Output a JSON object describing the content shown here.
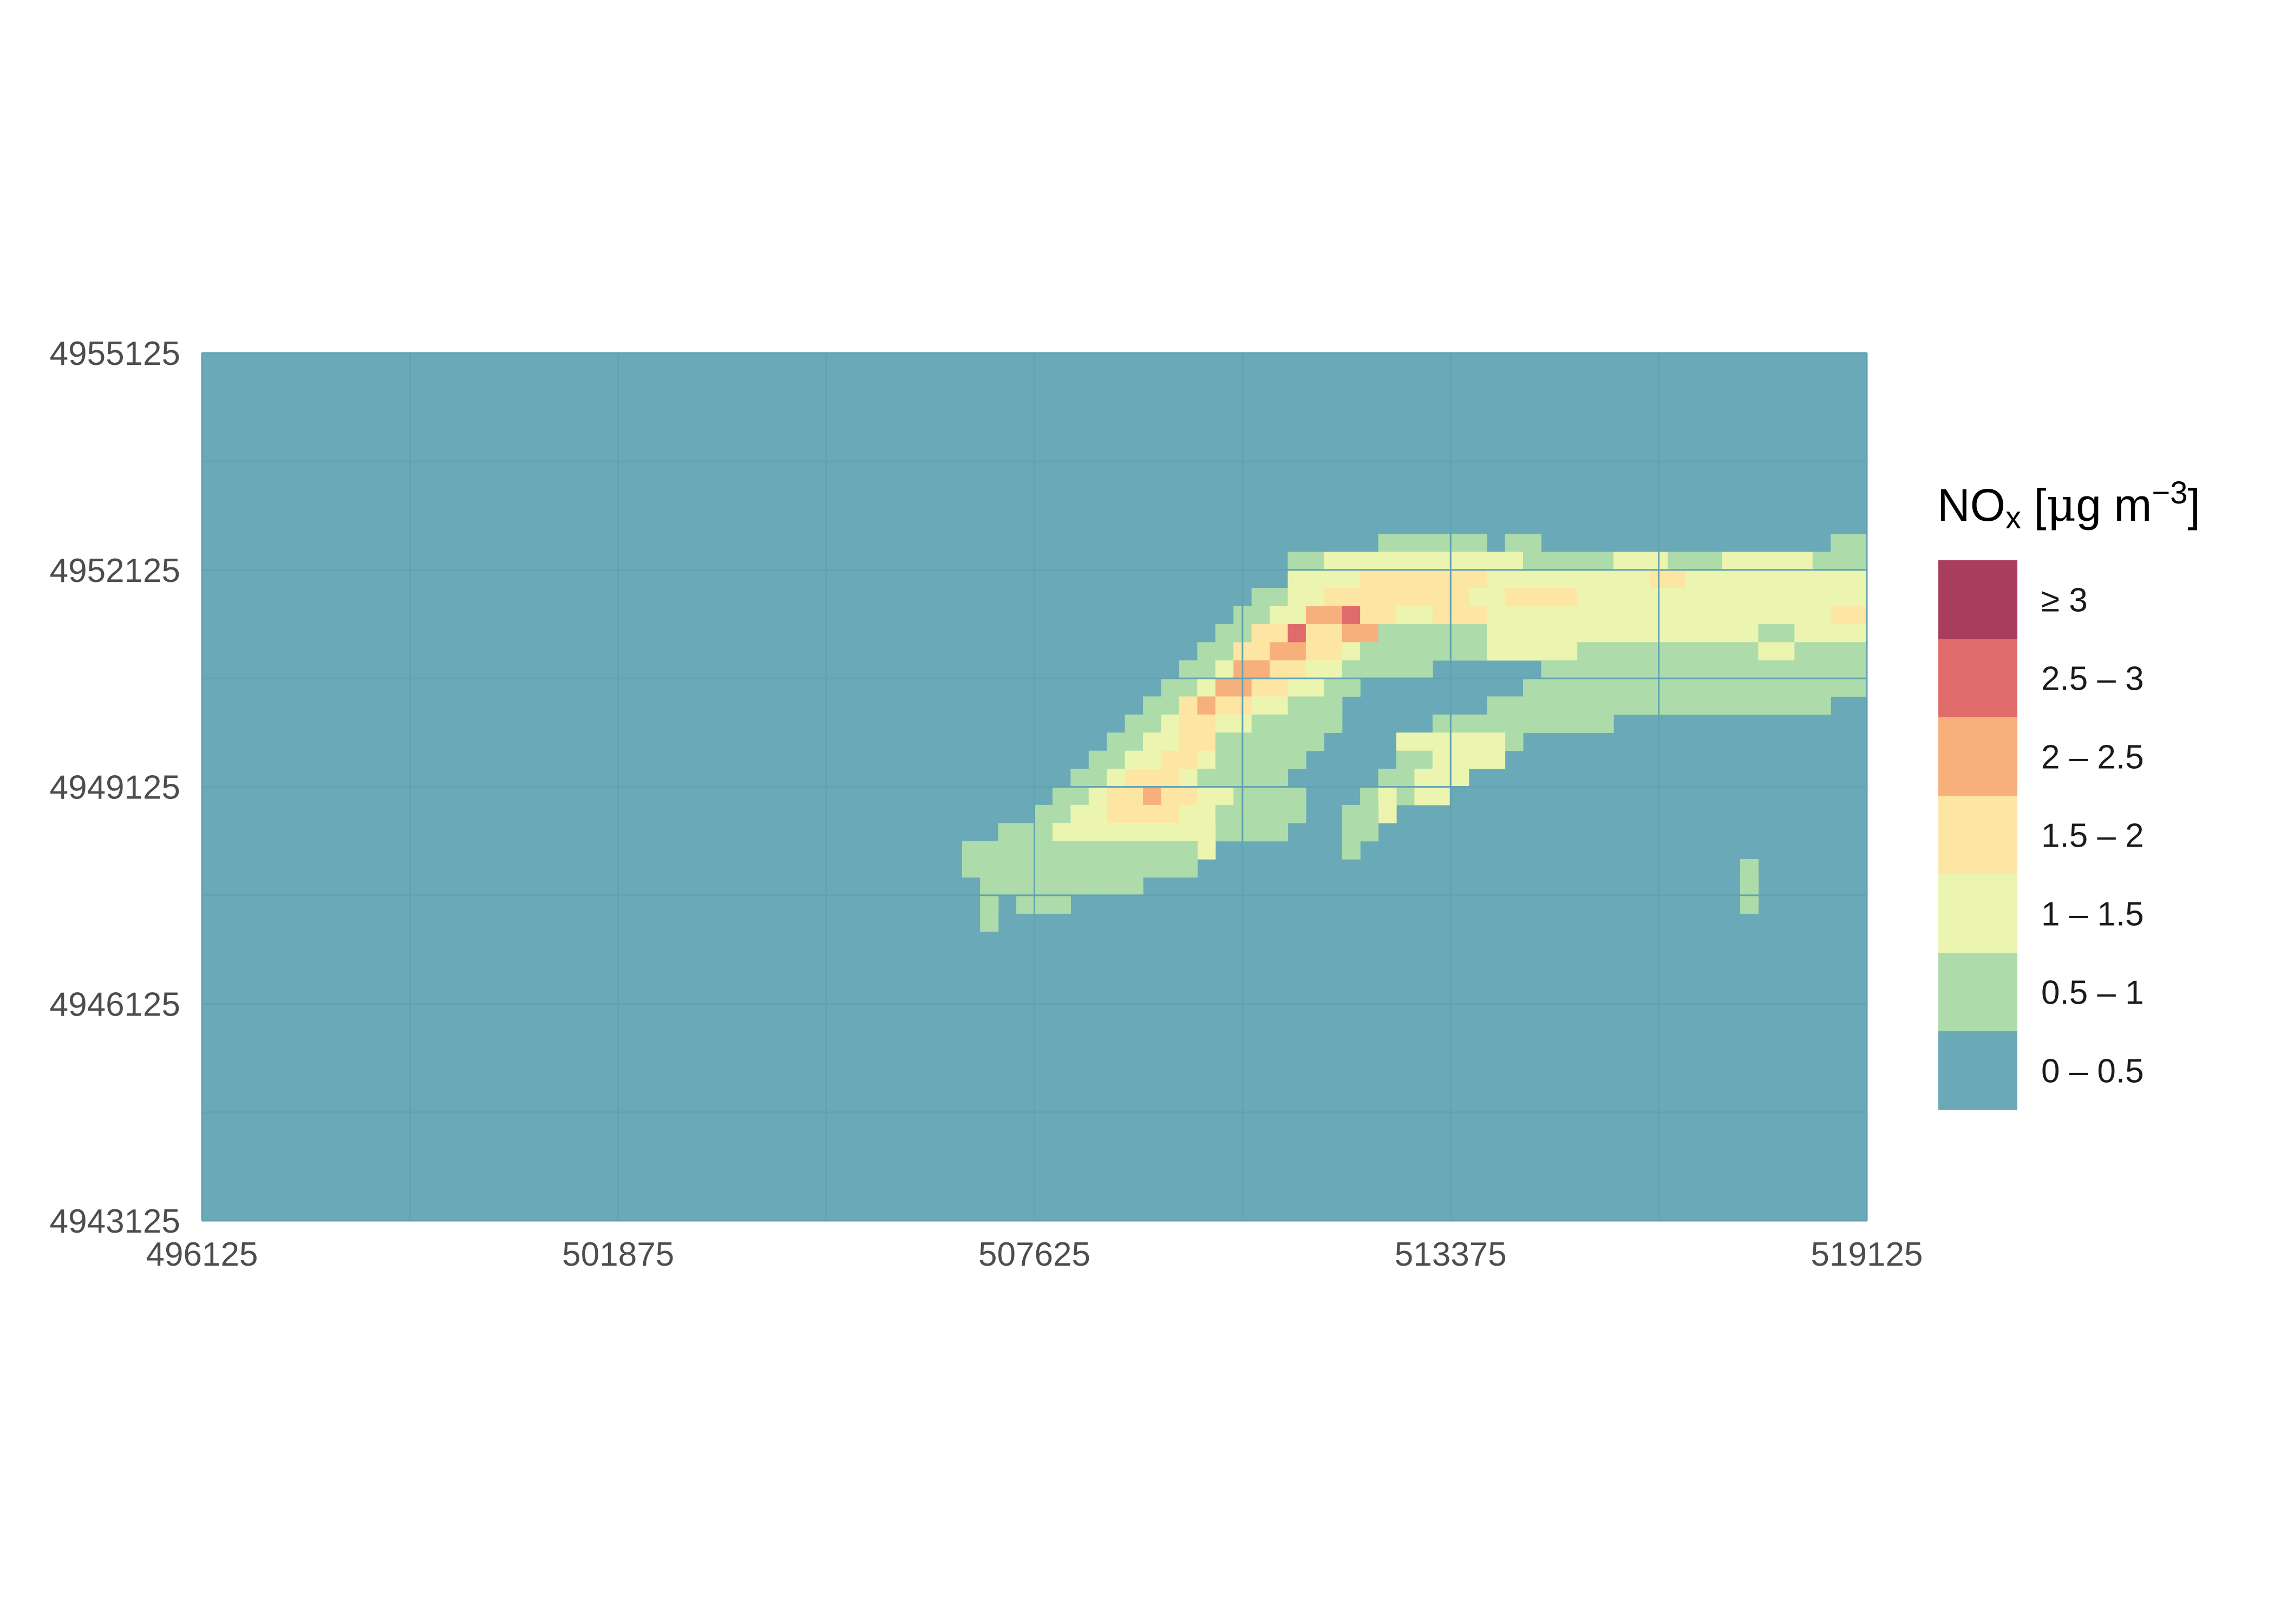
{
  "chart_data": {
    "type": "heatmap",
    "title": "",
    "xlabel": "",
    "ylabel": "",
    "xlim": [
      496125,
      519125
    ],
    "ylim": [
      4943125,
      4955125
    ],
    "x_ticks": [
      "496125",
      "501875",
      "507625",
      "513375",
      "519125"
    ],
    "y_ticks": [
      "4955125",
      "4952125",
      "4949125",
      "4946125",
      "4943125"
    ],
    "cell_size": 500,
    "legend": {
      "title_main": "NO",
      "title_sub": "x",
      "title_unit_open": " [",
      "title_mu": "μ",
      "title_unit": "g m",
      "title_exp": "−3",
      "title_close": "]",
      "position": "right",
      "classes": [
        {
          "label": "≥ 3",
          "color": "#a83d5f"
        },
        {
          "label": "2.5 – 3",
          "color": "#e06b6b"
        },
        {
          "label": "2 – 2.5",
          "color": "#f7b07b"
        },
        {
          "label": "1.5 – 2",
          "color": "#fde6a3"
        },
        {
          "label": "1 – 1.5",
          "color": "#ebf5b0"
        },
        {
          "label": "0.5 – 1",
          "color": "#addcaa"
        },
        {
          "label": "0 – 0.5",
          "color": "#6aa9b8"
        }
      ]
    },
    "background_class": "0 – 0.5",
    "plume_rows_note_omitted": true,
    "plume_rows": [
      {
        "y": 4952375,
        "cells": [
          [
            512375,
            513875,
            "0.5 – 1"
          ],
          [
            514125,
            514625,
            "0.5 – 1"
          ],
          [
            518625,
            519125,
            "0.5 – 1"
          ]
        ]
      },
      {
        "y": 4952125,
        "cells": [
          [
            511125,
            511625,
            "0.5 – 1"
          ],
          [
            511625,
            512125,
            "1 – 1.5"
          ],
          [
            512125,
            513375,
            "1 – 1.5"
          ],
          [
            513375,
            514375,
            "1 – 1.5"
          ],
          [
            514375,
            514625,
            "0.5 – 1"
          ],
          [
            514625,
            515625,
            "0.5 – 1"
          ],
          [
            515625,
            516375,
            "1 – 1.5"
          ],
          [
            516375,
            517125,
            "0.5 – 1"
          ],
          [
            517125,
            518375,
            "1 – 1.5"
          ],
          [
            518375,
            519125,
            "0.5 – 1"
          ]
        ]
      },
      {
        "y": 4951875,
        "cells": [
          [
            511125,
            512125,
            "1 – 1.5"
          ],
          [
            512125,
            513875,
            "1.5 – 2"
          ],
          [
            513875,
            516125,
            "1 – 1.5"
          ],
          [
            516125,
            516625,
            "1.5 – 2"
          ],
          [
            516625,
            519125,
            "1 – 1.5"
          ]
        ]
      },
      {
        "y": 4951625,
        "cells": [
          [
            510625,
            511125,
            "0.5 – 1"
          ],
          [
            511125,
            511625,
            "1 – 1.5"
          ],
          [
            511625,
            512875,
            "1.5 – 2"
          ],
          [
            512875,
            513625,
            "1.5 – 2"
          ],
          [
            513625,
            514125,
            "1 – 1.5"
          ],
          [
            514125,
            515125,
            "1.5 – 2"
          ],
          [
            515125,
            516125,
            "1 – 1.5"
          ],
          [
            516125,
            519125,
            "1 – 1.5"
          ]
        ]
      },
      {
        "y": 4951375,
        "cells": [
          [
            510375,
            510875,
            "0.5 – 1"
          ],
          [
            510875,
            511375,
            "1 – 1.5"
          ],
          [
            511375,
            511875,
            "2 – 2.5"
          ],
          [
            511875,
            512125,
            "2.5 – 3"
          ],
          [
            512125,
            512625,
            "1.5 – 2"
          ],
          [
            512625,
            513125,
            "1 – 1.5"
          ],
          [
            513125,
            513875,
            "1.5 – 2"
          ],
          [
            513875,
            518625,
            "1 – 1.5"
          ],
          [
            518625,
            519125,
            "1.5 – 2"
          ]
        ]
      },
      {
        "y": 4951125,
        "cells": [
          [
            510125,
            510625,
            "0.5 – 1"
          ],
          [
            510625,
            511125,
            "1.5 – 2"
          ],
          [
            511125,
            511375,
            "2.5 – 3"
          ],
          [
            511375,
            511875,
            "1.5 – 2"
          ],
          [
            511875,
            512375,
            "2 – 2.5"
          ],
          [
            512375,
            512875,
            "0.5 – 1"
          ],
          [
            512875,
            513875,
            "0.5 – 1"
          ],
          [
            513875,
            514625,
            "1 – 1.5"
          ],
          [
            514625,
            515625,
            "1 – 1.5"
          ],
          [
            515625,
            517625,
            "1 – 1.5"
          ],
          [
            517625,
            518125,
            "0.5 – 1"
          ],
          [
            518125,
            519125,
            "1 – 1.5"
          ]
        ]
      },
      {
        "y": 4950875,
        "cells": [
          [
            509875,
            510375,
            "0.5 – 1"
          ],
          [
            510375,
            510875,
            "1.5 – 2"
          ],
          [
            510875,
            511375,
            "2 – 2.5"
          ],
          [
            511375,
            511875,
            "1.5 – 2"
          ],
          [
            511875,
            512125,
            "1 – 1.5"
          ],
          [
            512125,
            513125,
            "0.5 – 1"
          ],
          [
            515125,
            517625,
            "0.5 – 1"
          ],
          [
            517625,
            518125,
            "1 – 1.5"
          ],
          [
            518125,
            519125,
            "0.5 – 1"
          ]
        ]
      },
      {
        "y": 4950625,
        "cells": [
          [
            509625,
            510125,
            "0.5 – 1"
          ],
          [
            510125,
            510375,
            "1 – 1.5"
          ],
          [
            510375,
            510875,
            "2 – 2.5"
          ],
          [
            510875,
            511375,
            "1.5 – 2"
          ],
          [
            511375,
            511875,
            "1 – 1.5"
          ],
          [
            511875,
            512125,
            "0.5 – 1"
          ],
          [
            514625,
            518625,
            "0.5 – 1"
          ],
          [
            518625,
            519125,
            "0.5 – 1"
          ]
        ]
      },
      {
        "y": 4950375,
        "cells": [
          [
            509375,
            509875,
            "0.5 – 1"
          ],
          [
            509875,
            510125,
            "1 – 1.5"
          ],
          [
            510125,
            510625,
            "2 – 2.5"
          ],
          [
            510625,
            511125,
            "1.5 – 2"
          ],
          [
            511125,
            511625,
            "1 – 1.5"
          ],
          [
            511625,
            511875,
            "0.5 – 1"
          ],
          [
            514375,
            516125,
            "0.5 – 1"
          ],
          [
            516125,
            517625,
            "0.5 – 1"
          ],
          [
            517625,
            518625,
            "0.5 – 1"
          ]
        ]
      },
      {
        "y": 4950125,
        "cells": [
          [
            509125,
            509625,
            "0.5 – 1"
          ],
          [
            509625,
            509875,
            "1.5 – 2"
          ],
          [
            509875,
            510125,
            "2 – 2.5"
          ],
          [
            510125,
            510625,
            "1.5 – 2"
          ],
          [
            510625,
            511125,
            "1 – 1.5"
          ],
          [
            511125,
            511625,
            "0.5 – 1"
          ],
          [
            511625,
            511875,
            "0.5 – 1"
          ],
          [
            513875,
            514625,
            "0.5 – 1"
          ],
          [
            514625,
            515625,
            "0.5 – 1"
          ]
        ]
      },
      {
        "y": 4949875,
        "cells": [
          [
            508875,
            509375,
            "0.5 – 1"
          ],
          [
            509375,
            509625,
            "1 – 1.5"
          ],
          [
            509625,
            510125,
            "1.5 – 2"
          ],
          [
            510125,
            510625,
            "1 – 1.5"
          ],
          [
            510625,
            511125,
            "0.5 – 1"
          ],
          [
            511125,
            511625,
            "0.5 – 1"
          ],
          [
            513125,
            513875,
            "0.5 – 1"
          ],
          [
            513875,
            514375,
            "0.5 – 1"
          ]
        ]
      },
      {
        "y": 4949625,
        "cells": [
          [
            508625,
            509125,
            "0.5 – 1"
          ],
          [
            509125,
            509625,
            "1 – 1.5"
          ],
          [
            509625,
            510125,
            "1.5 – 2"
          ],
          [
            510125,
            510875,
            "0.5 – 1"
          ],
          [
            510875,
            511375,
            "0.5 – 1"
          ],
          [
            512625,
            513125,
            "1 – 1.5"
          ],
          [
            513125,
            514125,
            "1 – 1.5"
          ]
        ]
      },
      {
        "y": 4949375,
        "cells": [
          [
            508375,
            508875,
            "0.5 – 1"
          ],
          [
            508875,
            509375,
            "1 – 1.5"
          ],
          [
            509375,
            509875,
            "1.5 – 2"
          ],
          [
            509875,
            510125,
            "1 – 1.5"
          ],
          [
            510125,
            511125,
            "0.5 – 1"
          ],
          [
            512625,
            513125,
            "0.5 – 1"
          ],
          [
            513125,
            513625,
            "1 – 1.5"
          ]
        ]
      },
      {
        "y": 4949125,
        "cells": [
          [
            508125,
            508625,
            "0.5 – 1"
          ],
          [
            508625,
            508875,
            "1 – 1.5"
          ],
          [
            508875,
            509125,
            "1.5 – 2"
          ],
          [
            509125,
            509625,
            "1.5 – 2"
          ],
          [
            509625,
            509875,
            "1 – 1.5"
          ],
          [
            509875,
            510125,
            "0.5 – 1"
          ],
          [
            510125,
            510625,
            "0.5 – 1"
          ],
          [
            512375,
            512875,
            "0.5 – 1"
          ],
          [
            512875,
            513375,
            "1 – 1.5"
          ]
        ]
      },
      {
        "y": 4948875,
        "cells": [
          [
            507875,
            508375,
            "0.5 – 1"
          ],
          [
            508375,
            508625,
            "1 – 1.5"
          ],
          [
            508625,
            509125,
            "1.5 – 2"
          ],
          [
            509125,
            509375,
            "2 – 2.5"
          ],
          [
            509375,
            509875,
            "1.5 – 2"
          ],
          [
            509875,
            510375,
            "1 – 1.5"
          ],
          [
            510375,
            511375,
            "0.5 – 1"
          ],
          [
            512125,
            512375,
            "0.5 – 1"
          ],
          [
            512375,
            512625,
            "1 – 1.5"
          ]
        ]
      },
      {
        "y": 4948625,
        "cells": [
          [
            507625,
            508125,
            "0.5 – 1"
          ],
          [
            508125,
            508625,
            "1 – 1.5"
          ],
          [
            508625,
            509625,
            "1.5 – 2"
          ],
          [
            509625,
            510125,
            "1 – 1.5"
          ],
          [
            510125,
            511125,
            "0.5 – 1"
          ],
          [
            511875,
            512375,
            "0.5 – 1"
          ]
        ]
      },
      {
        "y": 4948375,
        "cells": [
          [
            507125,
            507625,
            "0.5 – 1"
          ],
          [
            507625,
            507875,
            "0.5 – 1"
          ],
          [
            507875,
            508375,
            "1 – 1.5"
          ],
          [
            508375,
            509375,
            "1 – 1.5"
          ],
          [
            509375,
            510125,
            "1 – 1.5"
          ],
          [
            511875,
            512125,
            "0.5 – 1"
          ]
        ]
      },
      {
        "y": 4948125,
        "cells": [
          [
            506625,
            507125,
            "0.5 – 1"
          ],
          [
            507125,
            507625,
            "0.5 – 1"
          ],
          [
            507625,
            508875,
            "0.5 – 1"
          ],
          [
            508875,
            509875,
            "0.5 – 1"
          ]
        ]
      },
      {
        "y": 4947875,
        "cells": [
          [
            506875,
            508375,
            "0.5 – 1"
          ],
          [
            508375,
            508625,
            "0.5 – 1"
          ],
          [
            508625,
            509125,
            "0.5 – 1"
          ],
          [
            517375,
            517625,
            "0.5 – 1"
          ]
        ]
      },
      {
        "y": 4947625,
        "cells": [
          [
            506875,
            507125,
            "0.5 – 1"
          ],
          [
            507375,
            508125,
            "0.5 – 1"
          ],
          [
            517375,
            517625,
            "0.5 – 1"
          ]
        ]
      },
      {
        "y": 4947375,
        "cells": [
          [
            506875,
            507125,
            "0.5 – 1"
          ]
        ]
      }
    ]
  }
}
